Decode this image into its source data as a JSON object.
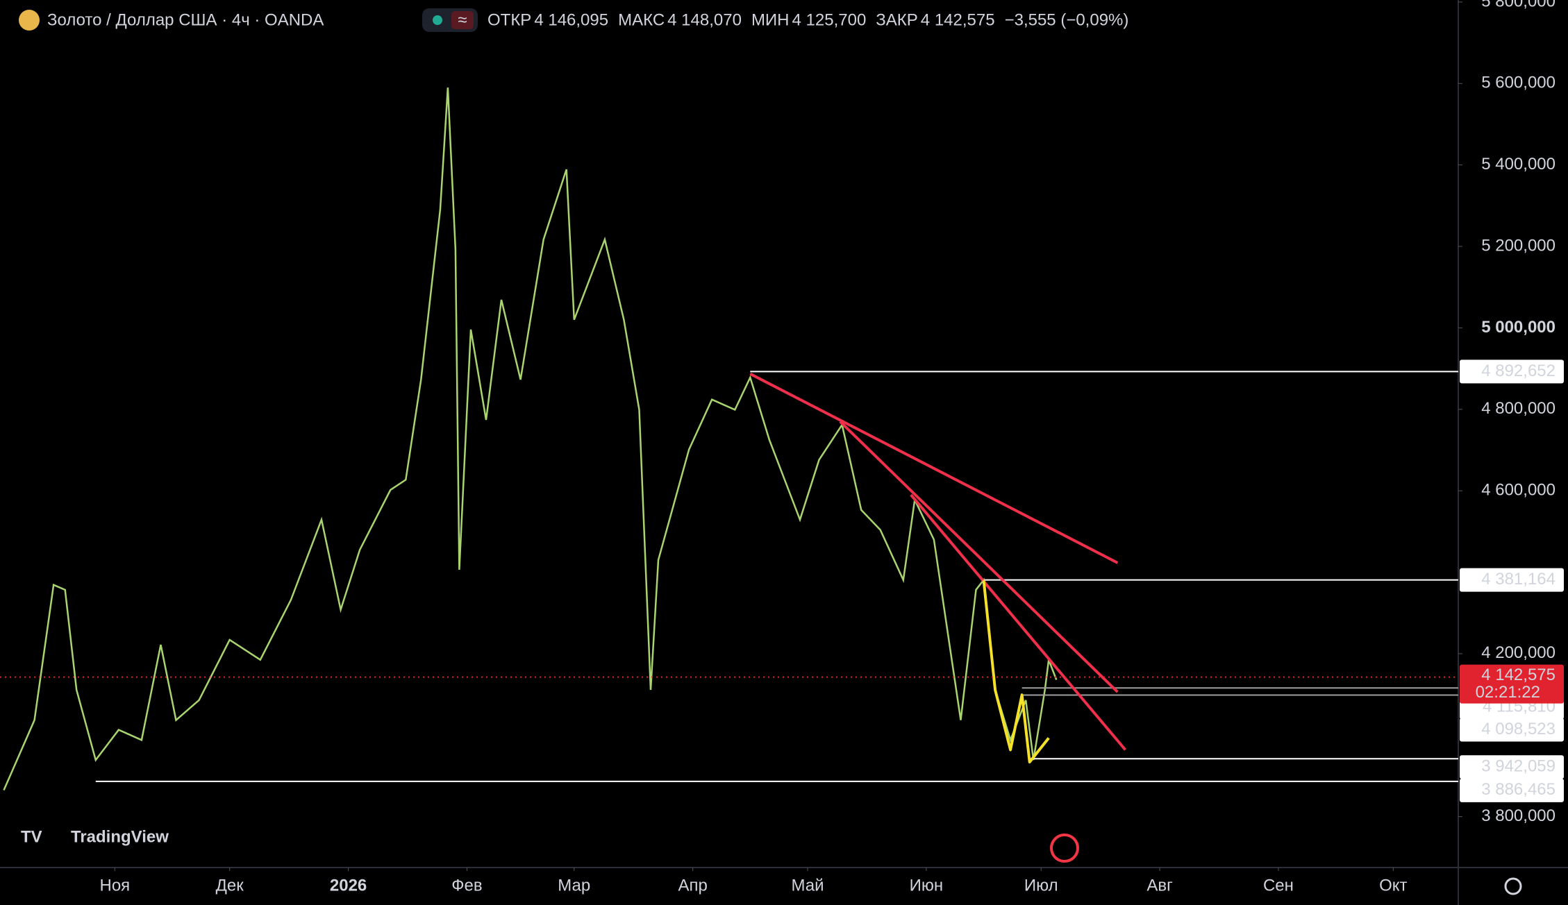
{
  "chart_data": {
    "type": "line",
    "title": "Золото / Доллар США · 4ч · OANDA",
    "ohlc": [
      {
        "label": "ОТКР",
        "value": "4 146,095"
      },
      {
        "label": "МАКС",
        "value": "4 148,070"
      },
      {
        "label": "МИН",
        "value": "4 125,700"
      },
      {
        "label": "ЗАКР",
        "value": "4 142,575"
      }
    ],
    "change": "−3,555 (−0,09%)",
    "brand": "TradingView",
    "series": [
      {
        "color": "#a9d46f",
        "x": [
          -29,
          -21,
          -16,
          -13,
          -10,
          -5,
          1,
          7,
          12,
          16,
          22,
          30,
          38,
          46,
          54,
          59,
          64,
          72,
          76,
          80,
          85,
          87,
          89,
          90,
          93,
          97,
          101,
          106,
          112,
          118,
          120,
          128,
          133,
          137,
          140,
          142,
          150,
          156,
          162,
          166,
          171,
          179,
          184,
          190,
          195,
          200,
          206,
          209,
          214,
          221,
          225,
          227,
          230,
          234,
          238,
          240,
          243,
          244,
          246
        ],
        "values": [
          3865,
          4037,
          4369,
          4357,
          4111,
          3939,
          4013,
          3988,
          4222,
          4037,
          4086,
          4234,
          4185,
          4332,
          4529,
          4308,
          4455,
          4602,
          4627,
          4873,
          5290,
          5590,
          5192,
          4406,
          4996,
          4774,
          5069,
          4873,
          5217,
          5389,
          5020,
          5217,
          5020,
          4799,
          4111,
          4430,
          4701,
          4824,
          4799,
          4878,
          4725,
          4529,
          4676,
          4762,
          4553,
          4504,
          4381,
          4578,
          4480,
          4037,
          4357,
          4381,
          4111,
          3988,
          4086,
          3939,
          4111,
          4185,
          4136
        ]
      }
    ],
    "xlim": [
      -30,
      351
    ],
    "xticks": [
      {
        "value": 0,
        "label": "Ноя"
      },
      {
        "value": 30,
        "label": "Дек"
      },
      {
        "value": 61,
        "label": "2026"
      },
      {
        "value": 92,
        "label": "Фев"
      },
      {
        "value": 120,
        "label": "Мар"
      },
      {
        "value": 151,
        "label": "Апр"
      },
      {
        "value": 181,
        "label": "Май"
      },
      {
        "value": 212,
        "label": "Июн"
      },
      {
        "value": 242,
        "label": "Июл"
      },
      {
        "value": 273,
        "label": "Авг"
      },
      {
        "value": 304,
        "label": "Сен"
      },
      {
        "value": 334,
        "label": "Окт"
      }
    ],
    "ylim": [
      3675,
      5805
    ],
    "yticks": [
      {
        "value": 3800,
        "label": "3 800,000"
      },
      {
        "value": 4200,
        "label": "4 200,000"
      },
      {
        "value": 4600,
        "label": "4 600,000"
      },
      {
        "value": 4800,
        "label": "4 800,000"
      },
      {
        "value": 5000,
        "label": "5 000,000"
      },
      {
        "value": 5200,
        "label": "5 200,000"
      },
      {
        "value": 5400,
        "label": "5 400,000"
      },
      {
        "value": 5600,
        "label": "5 600,000"
      },
      {
        "value": 5800,
        "label": "5 800,000"
      }
    ],
    "levels": [
      {
        "value": 4892.652,
        "label": "4 892,652",
        "from": 166,
        "color": "#ffffff"
      },
      {
        "value": 4381.164,
        "label": "4 381,164",
        "from": 227,
        "color": "#ffffff"
      },
      {
        "value": 4115.81,
        "label": "4 115,810",
        "from": 237,
        "color": "#9e9e9e"
      },
      {
        "value": 4098.523,
        "label": "4 098,523",
        "from": 237,
        "color": "#9e9e9e"
      },
      {
        "value": 3942.059,
        "label": "3 942,059",
        "from": 239,
        "color": "#ffffff"
      },
      {
        "value": 3886.465,
        "label": "3 886,465",
        "from": -5,
        "color": "#ffffff"
      }
    ],
    "current": {
      "value": 4142.575,
      "label": "4 142,575",
      "timer": "02:21:22",
      "color": "#e0232e"
    },
    "drawings": [
      {
        "color": "#f0304a",
        "x": [
          166,
          262
        ],
        "y": [
          4887,
          4423
        ]
      },
      {
        "color": "#f0304a",
        "x": [
          189.5,
          262
        ],
        "y": [
          4770,
          4106
        ]
      },
      {
        "color": "#f0304a",
        "x": [
          208,
          264
        ],
        "y": [
          4590,
          3964
        ]
      },
      {
        "color": "#f5e02a",
        "x": [
          227,
          230,
          234,
          237,
          239,
          244
        ],
        "y": [
          4381,
          4111,
          3964,
          4099,
          3934,
          3993
        ]
      }
    ]
  }
}
